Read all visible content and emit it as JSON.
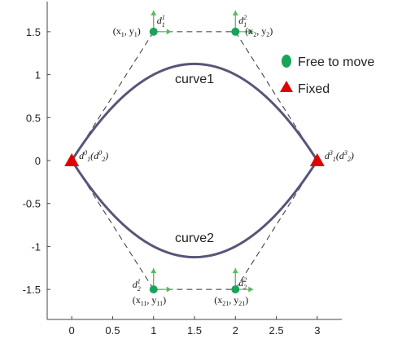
{
  "chart_data": {
    "type": "line",
    "xlim": [
      -0.3,
      3.3
    ],
    "ylim": [
      -1.85,
      1.85
    ],
    "x_ticks": [
      "0",
      "0.5",
      "1",
      "1.5",
      "2",
      "2.5",
      "3"
    ],
    "x_tick_values": [
      0,
      0.5,
      1,
      1.5,
      2,
      2.5,
      3
    ],
    "y_ticks": [
      "1.5",
      "1",
      "0.5",
      "0",
      "-0.5",
      "-1",
      "-1.5"
    ],
    "y_tick_values": [
      1.5,
      1,
      0.5,
      0,
      -0.5,
      -1,
      -1.5
    ],
    "curve_color": "#56567a",
    "control_polygon_color": "#333333",
    "free_color": "#1aa35a",
    "fixed_color": "#e00000",
    "arrow_color": "#5cb85c",
    "series": [
      {
        "name": "curve1",
        "label": "curve1",
        "x": [
          0,
          1,
          2,
          3
        ],
        "y": [
          0,
          1.5,
          1.5,
          0
        ]
      },
      {
        "name": "curve2",
        "label": "curve2",
        "x": [
          0,
          1,
          2,
          3
        ],
        "y": [
          0,
          -1.5,
          -1.5,
          0
        ]
      }
    ],
    "legend": [
      {
        "marker": "ellipse",
        "label": "Free to move"
      },
      {
        "marker": "triangle",
        "label": "Fixed"
      }
    ],
    "points": [
      {
        "x": 0,
        "y": 0,
        "kind": "fixed",
        "label_main": "d",
        "sub": "1",
        "sup": "0",
        "label_paren": "d",
        "paren_sub": "2",
        "paren_sup": "0"
      },
      {
        "x": 3,
        "y": 0,
        "kind": "fixed",
        "label_main": "d",
        "sub": "1",
        "sup": "3",
        "label_paren": "d",
        "paren_sub": "2",
        "paren_sup": "3"
      },
      {
        "x": 1,
        "y": 1.5,
        "kind": "free",
        "d_label": "d",
        "d_sub": "1",
        "d_sup": "1",
        "coord": "(x",
        "coord_sub": "1",
        "coord_mid": ", y",
        "coord_sub2": "1",
        "coord_end": ")"
      },
      {
        "x": 2,
        "y": 1.5,
        "kind": "free",
        "d_label": "d",
        "d_sub": "1",
        "d_sup": "2",
        "coord": "(x",
        "coord_sub": "2",
        "coord_mid": ", y",
        "coord_sub2": "2",
        "coord_end": ")"
      },
      {
        "x": 1,
        "y": -1.5,
        "kind": "free",
        "d_label": "d",
        "d_sub": "2",
        "d_sup": "1",
        "coord": "(x",
        "coord_sub": "11",
        "coord_mid": ", y",
        "coord_sub2": "11",
        "coord_end": ")"
      },
      {
        "x": 2,
        "y": -1.5,
        "kind": "free",
        "d_label": "d",
        "d_sub": "2",
        "d_sup": "2",
        "coord": "(x",
        "coord_sub": "21",
        "coord_mid": ", y",
        "coord_sub2": "21",
        "coord_end": ")"
      }
    ]
  }
}
